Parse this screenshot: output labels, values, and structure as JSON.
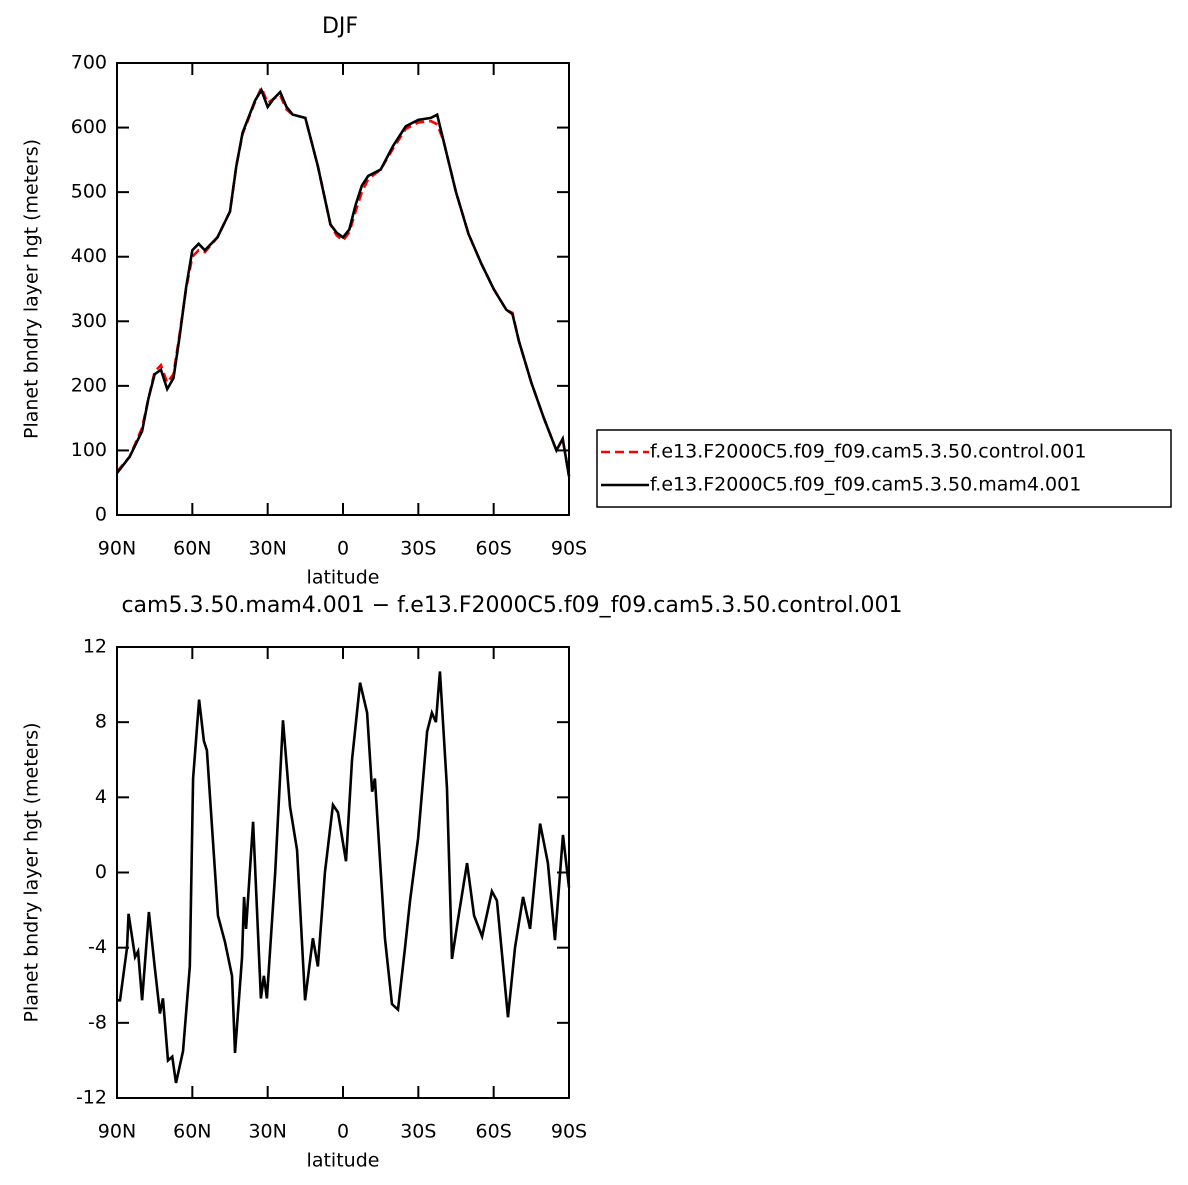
{
  "chart_data": [
    {
      "type": "line",
      "title": "DJF",
      "xlabel": "latitude",
      "ylabel": "Planet bndry layer hgt (meters)",
      "x": [
        90,
        85,
        80,
        77.5,
        75,
        72.5,
        70,
        67.5,
        65,
        62.5,
        60,
        57.5,
        55,
        50,
        45,
        42.5,
        40,
        35,
        32.5,
        30,
        27.5,
        25,
        22.5,
        20,
        15,
        10,
        5,
        2.5,
        0,
        -2.5,
        -5,
        -7.5,
        -10,
        -15,
        -20,
        -25,
        -30,
        -35,
        -37.5,
        -40,
        -45,
        -50,
        -55,
        -60,
        -65,
        -67.5,
        -70,
        -75,
        -80,
        -85,
        -87.5,
        -90
      ],
      "series": [
        {
          "name": "f.e13.F2000C5.f09_f09.cam5.3.50.control.001",
          "color": "#ff0000",
          "style": "dashed",
          "values": [
            67,
            90,
            135,
            180,
            222,
            232,
            205,
            218,
            282,
            350,
            400,
            410,
            407,
            430,
            470,
            540,
            590,
            640,
            662,
            638,
            645,
            650,
            628,
            620,
            615,
            540,
            450,
            433,
            425,
            438,
            470,
            500,
            520,
            535,
            568,
            598,
            608,
            610,
            605,
            580,
            500,
            435,
            390,
            350,
            318,
            313,
            270,
            205,
            150,
            100,
            118,
            60
          ]
        },
        {
          "name": "f.e13.F2000C5.f09_f09.cam5.3.50.mam4.001",
          "color": "#000000",
          "style": "solid",
          "values": [
            65,
            90,
            130,
            180,
            218,
            225,
            195,
            212,
            278,
            352,
            410,
            420,
            410,
            430,
            470,
            540,
            592,
            642,
            658,
            632,
            645,
            655,
            632,
            620,
            615,
            540,
            450,
            437,
            430,
            442,
            480,
            510,
            525,
            535,
            572,
            602,
            612,
            615,
            620,
            580,
            500,
            435,
            390,
            350,
            318,
            311,
            270,
            205,
            150,
            100,
            118,
            60
          ]
        }
      ],
      "xlim": [
        90,
        -90
      ],
      "xticks": [
        {
          "value": 90,
          "label": "90N"
        },
        {
          "value": 60,
          "label": "60N"
        },
        {
          "value": 30,
          "label": "30N"
        },
        0,
        {
          "value": -30,
          "label": "30S"
        },
        {
          "value": -60,
          "label": "60S"
        },
        {
          "value": -90,
          "label": "90S"
        }
      ],
      "ylim": [
        0,
        700
      ],
      "yticks": [
        0,
        100,
        200,
        300,
        400,
        500,
        600,
        700
      ],
      "legend": "right"
    },
    {
      "type": "line",
      "title": "cam5.3.50.mam4.001 − f.e13.F2000C5.f09_f09.cam5.3.50.control.001",
      "xlabel": "latitude",
      "ylabel": "Planet bndry layer hgt (meters)",
      "x": [
        90,
        88.8,
        86,
        85.4,
        82.8,
        81.6,
        80,
        77.3,
        75,
        72.9,
        71.7,
        69.7,
        68,
        66.5,
        63.7,
        61,
        59.7,
        57.3,
        55.4,
        54.2,
        49.8,
        47,
        44.2,
        43,
        40.2,
        39.4,
        38.6,
        35.8,
        32.7,
        31.5,
        30.3,
        27,
        23.9,
        21.1,
        18.3,
        15.1,
        12,
        10,
        7.2,
        4,
        2,
        -1.2,
        -3.6,
        -6.8,
        -9.6,
        -11.6,
        -12.7,
        -16.7,
        -19.5,
        -21.9,
        -24.7,
        -26.7,
        -29.9,
        -33.5,
        -35.4,
        -37,
        -38.6,
        -41.4,
        -43.4,
        -45.8,
        -49.4,
        -52.2,
        -55.4,
        -59.3,
        -61.3,
        -65.7,
        -68.5,
        -71.7,
        -74.5,
        -78.5,
        -81.6,
        -84.4,
        -87.6,
        -90
      ],
      "values": [
        -6.8,
        -6.8,
        -4,
        -2.2,
        -4.5,
        -4.2,
        -6.8,
        -2.1,
        -5,
        -7.5,
        -6.7,
        -10,
        -9.8,
        -11.2,
        -9.5,
        -5,
        5,
        9.2,
        7,
        6.5,
        -2.3,
        -3.7,
        -5.5,
        -9.6,
        -4.5,
        -1.3,
        -3,
        2.7,
        -6.7,
        -5.5,
        -6.7,
        0,
        8.1,
        3.5,
        1.2,
        -6.8,
        -3.5,
        -5,
        0,
        3.6,
        3.2,
        0.6,
        6,
        10.1,
        8.5,
        4.3,
        5,
        -3.5,
        -7,
        -7.3,
        -4,
        -1.5,
        1.8,
        7.5,
        8.5,
        8,
        10.7,
        4.5,
        -4.6,
        -2.5,
        0.5,
        -2.3,
        -3.4,
        -1,
        -1.5,
        -7.7,
        -4,
        -1.3,
        -3,
        2.6,
        0.5,
        -3.6,
        2,
        -0.8
      ],
      "color": "#000000",
      "xlim": [
        90,
        -90
      ],
      "xticks": [
        {
          "value": 90,
          "label": "90N"
        },
        {
          "value": 60,
          "label": "60N"
        },
        {
          "value": 30,
          "label": "30N"
        },
        0,
        {
          "value": -30,
          "label": "30S"
        },
        {
          "value": -60,
          "label": "60S"
        },
        {
          "value": -90,
          "label": "90S"
        }
      ],
      "ylim": [
        -12,
        12
      ],
      "yticks": [
        -12,
        -8,
        -4,
        0,
        4,
        8,
        12
      ]
    }
  ]
}
